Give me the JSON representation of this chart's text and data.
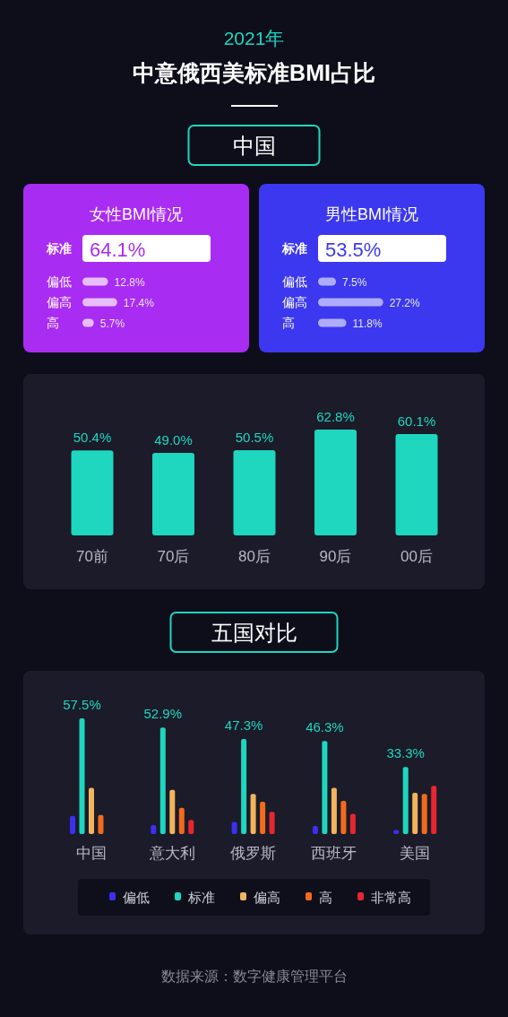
{
  "chart_data": [
    {
      "type": "other",
      "subtitle": "2021年",
      "title": "中意俄西美标准BMI占比",
      "annotations": [
        "中国"
      ]
    },
    {
      "type": "bar",
      "orientation": "horizontal",
      "title": "女性BMI情况",
      "categories": [
        "标准",
        "偏低",
        "偏高",
        "高"
      ],
      "values": [
        64.1,
        12.8,
        17.4,
        5.7
      ],
      "value_labels": [
        "64.1%",
        "12.8%",
        "17.4%",
        "5.7%"
      ],
      "colors": [
        "#ffffff",
        "#e8bdfd",
        "#e8bdfd",
        "#e8bdfd"
      ]
    },
    {
      "type": "bar",
      "orientation": "horizontal",
      "title": "男性BMI情况",
      "categories": [
        "标准",
        "偏低",
        "偏高",
        "高"
      ],
      "values": [
        53.5,
        7.5,
        27.2,
        11.8
      ],
      "value_labels": [
        "53.5%",
        "7.5%",
        "27.2%",
        "11.8%"
      ],
      "colors": [
        "#ffffff",
        "#aeacff",
        "#aeacff",
        "#aeacff"
      ]
    },
    {
      "type": "bar",
      "categories": [
        "70前",
        "70后",
        "80后",
        "90后",
        "00后"
      ],
      "values": [
        50.4,
        49.0,
        50.5,
        62.8,
        60.1
      ],
      "value_labels": [
        "50.4%",
        "49.0%",
        "50.5%",
        "62.8%",
        "60.1%"
      ],
      "color": "#1fd6bf"
    },
    {
      "type": "bar",
      "title": "五国对比",
      "categories": [
        "中国",
        "意大利",
        "俄罗斯",
        "西班牙",
        "美国"
      ],
      "legend": "bottom",
      "annotations": [
        "数据来源：数字健康管理平台"
      ],
      "series": [
        {
          "name": "偏低",
          "color": "#3b30f0",
          "values": [
            9,
            4.5,
            6,
            4,
            2
          ]
        },
        {
          "name": "标准",
          "color": "#1fd6bf",
          "values": [
            57.5,
            52.9,
            47.3,
            46.3,
            33.3
          ],
          "value_labels": [
            "57.5%",
            "52.9%",
            "47.3%",
            "46.3%",
            "33.3%"
          ]
        },
        {
          "name": "偏高",
          "color": "#f2b45c",
          "values": [
            23,
            22,
            20,
            23,
            20.5
          ]
        },
        {
          "name": "高",
          "color": "#f26b1d",
          "values": [
            9.5,
            13,
            16,
            16.5,
            20
          ]
        },
        {
          "name": "非常高",
          "color": "#e8262e",
          "values": [
            null,
            7,
            11,
            10,
            24
          ]
        }
      ]
    }
  ]
}
